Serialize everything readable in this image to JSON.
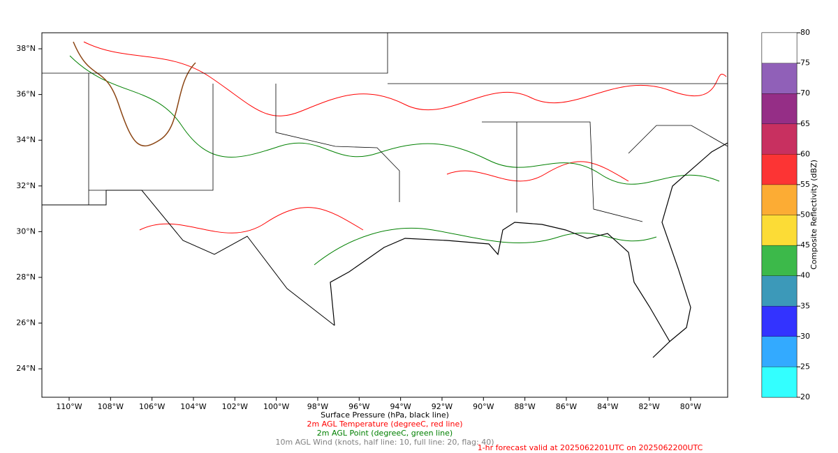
{
  "map": {
    "lon_ticks": [
      "110°W",
      "108°W",
      "106°W",
      "104°W",
      "102°W",
      "100°W",
      "98°W",
      "96°W",
      "94°W",
      "92°W",
      "90°W",
      "88°W",
      "86°W",
      "84°W",
      "82°W",
      "80°W"
    ],
    "lat_ticks": [
      "38°N",
      "36°N",
      "34°N",
      "32°N",
      "30°N",
      "28°N",
      "26°N",
      "24°N"
    ]
  },
  "colorbar": {
    "label": "Composite Reflectivity (dBZ)",
    "levels": [
      20,
      25,
      30,
      35,
      40,
      45,
      50,
      55,
      60,
      65,
      70,
      75,
      80
    ],
    "colors": [
      "#33ffff",
      "#33aaff",
      "#3333ff",
      "#3c99b9",
      "#3cb94a",
      "#fcdc36",
      "#fcac34",
      "#fc3434",
      "#c83060",
      "#952e86",
      "#9060b8",
      "#ffffff"
    ]
  },
  "captions": [
    {
      "text": "Surface Pressure (hPa, black line)",
      "color": "#000000"
    },
    {
      "text": "2m AGL Temperature (degreeC, red line)",
      "color": "#ff0000"
    },
    {
      "text": "2m AGL Point (degreeC, green line)",
      "color": "#008000"
    },
    {
      "text": "10m AGL Wind (knots, half line: 10, full line: 20, flag: 40)",
      "color": "#808080"
    }
  ],
  "valid_text": {
    "text": "1-hr forecast valid at 2025062201UTC on 2025062200UTC",
    "color": "#ff0000"
  }
}
